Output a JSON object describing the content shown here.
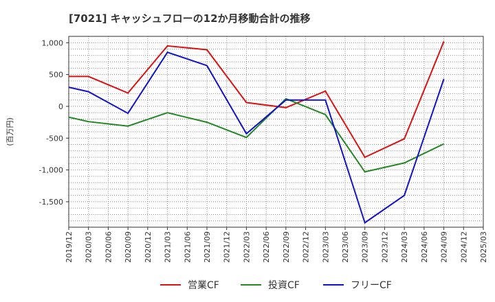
{
  "chart_data": {
    "type": "line",
    "title": "[7021]  キャッシュフローの12か月移動合計の推移",
    "ylabel": "(百万円)",
    "xlabel": "",
    "ylim": [
      -1900,
      1100
    ],
    "yticks": [
      1000,
      500,
      0,
      -500,
      -1000,
      -1500
    ],
    "ytick_labels": [
      "1,000",
      "500",
      "0",
      "-500",
      "-1,000",
      "-1,500"
    ],
    "categories": [
      "2019/12",
      "2020/03",
      "2020/06",
      "2020/09",
      "2020/12",
      "2021/03",
      "2021/06",
      "2021/09",
      "2021/12",
      "2022/03",
      "2022/06",
      "2022/09",
      "2022/12",
      "2023/03",
      "2023/06",
      "2023/09",
      "2023/12",
      "2024/03",
      "2024/06",
      "2024/09",
      "2024/12",
      "2025/03"
    ],
    "grid": true,
    "legend_position": "bottom",
    "series": [
      {
        "name": "営業CF",
        "color": "#dd1111",
        "values": [
          470,
          470,
          null,
          210,
          null,
          950,
          null,
          890,
          null,
          60,
          null,
          -20,
          null,
          240,
          null,
          -800,
          null,
          -510,
          null,
          1020,
          null,
          null
        ]
      },
      {
        "name": "投資CF",
        "color": "#228822",
        "values": [
          -170,
          -240,
          null,
          -310,
          null,
          -100,
          null,
          -250,
          null,
          -490,
          null,
          120,
          null,
          -130,
          null,
          -1030,
          null,
          -890,
          null,
          -590,
          null,
          null
        ]
      },
      {
        "name": "フリーCF",
        "color": "#1111cc",
        "values": [
          300,
          230,
          null,
          -110,
          null,
          850,
          null,
          640,
          null,
          -430,
          null,
          100,
          null,
          100,
          null,
          -1830,
          null,
          -1400,
          null,
          430,
          null,
          null
        ]
      }
    ]
  }
}
